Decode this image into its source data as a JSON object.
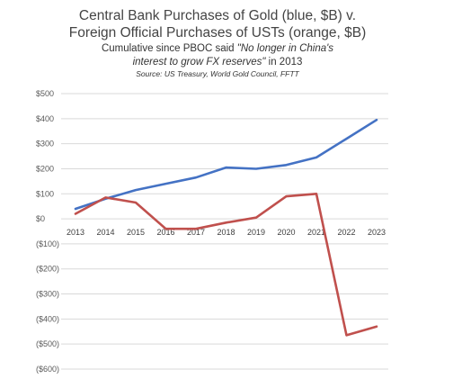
{
  "chart_data": {
    "type": "line",
    "title": "Central Bank Purchases of Gold (blue, $B) v. Foreign Official Purchases of USTs (orange, $B)",
    "title_lines": [
      "Central Bank Purchases of Gold (blue, $B) v.",
      "Foreign Official Purchases of USTs (orange, $B)"
    ],
    "subtitle_lines": [
      {
        "parts": [
          {
            "text": "Cumulative since PBOC said ",
            "italic": false
          },
          {
            "text": "\"No longer in China's",
            "italic": true
          }
        ]
      },
      {
        "parts": [
          {
            "text": "interest to grow FX reserves\"",
            "italic": true
          },
          {
            "text": " in 2013",
            "italic": false
          }
        ]
      }
    ],
    "source": "Source: US Treasury, World Gold Council, FFTT",
    "x": [
      "2013",
      "2014",
      "2015",
      "2016",
      "2017",
      "2018",
      "2019",
      "2020",
      "2021",
      "2022",
      "2023"
    ],
    "series": [
      {
        "color": "#4472c4",
        "values": [
          40,
          80,
          115,
          140,
          165,
          205,
          200,
          215,
          245,
          320,
          395
        ]
      },
      {
        "color": "#c0504d",
        "values": [
          20,
          85,
          65,
          -40,
          -40,
          -15,
          5,
          90,
          100,
          -465,
          -430
        ]
      }
    ],
    "ylim": [
      -600,
      500
    ],
    "y_ticks": [
      500,
      400,
      300,
      200,
      100,
      0,
      -100,
      -200,
      -300,
      -400,
      -500,
      -600
    ],
    "y_tick_labels": [
      "$500",
      "$400",
      "$300",
      "$200",
      "$100",
      "$0",
      "($100)",
      "($200)",
      "($300)",
      "($400)",
      "($500)",
      "($600)"
    ],
    "x_tick_labels": [
      "2013",
      "2014",
      "2015",
      "2016",
      "2017",
      "2018",
      "2019",
      "2020",
      "2021",
      "2022",
      "2023"
    ],
    "grid": true,
    "legend": "none"
  }
}
